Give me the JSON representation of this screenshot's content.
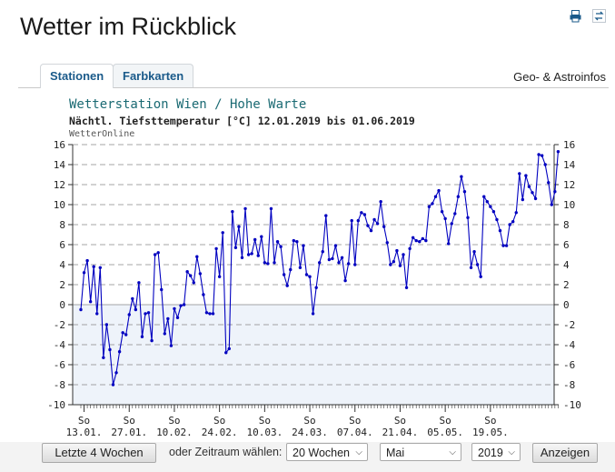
{
  "page": {
    "title": "Wetter im Rückblick"
  },
  "icons": {
    "print": "printer-icon",
    "share": "swap-arrows-icon"
  },
  "tabs": [
    {
      "label": "Stationen",
      "active": true
    },
    {
      "label": "Farbkarten",
      "active": false
    }
  ],
  "geo_link": "Geo- & Astroinfos",
  "chart_data": {
    "type": "line",
    "title": "Wetterstation Wien / Hohe Warte",
    "subtitle": "Nächtl. Tiefsttemperatur [°C] 12.01.2019 bis 01.06.2019",
    "source": "WetterOnline",
    "ylim": [
      -10,
      16
    ],
    "yticks": [
      -10,
      -8,
      -6,
      -4,
      -2,
      0,
      2,
      4,
      6,
      8,
      10,
      12,
      14,
      16
    ],
    "grid": true,
    "xtick_day": "So",
    "xtick_labels": [
      "13.01.",
      "27.01.",
      "10.02.",
      "24.02.",
      "10.03.",
      "24.03.",
      "07.04.",
      "21.04.",
      "05.05.",
      "19.05."
    ],
    "colors": {
      "line": "#0000c0",
      "below_zero_fill": "#eef3fa",
      "grid": "#888888"
    },
    "series": [
      {
        "values": [
          -0.5,
          3.2,
          4.4,
          0.3,
          3.8,
          -0.9,
          3.7,
          -5.3,
          -2.0,
          -4.5,
          -8.0,
          -6.8,
          -4.7,
          -2.8,
          -3.0,
          -1.0,
          0.6,
          -0.5,
          2.2,
          -3.2,
          -0.9,
          -0.8,
          -3.6,
          5.0,
          5.2,
          1.5,
          -2.9,
          -1.4,
          -4.1,
          -0.4,
          -1.3,
          -0.1,
          0.0,
          3.3,
          2.9,
          2.2,
          4.8,
          3.1,
          1.0,
          -0.8,
          -0.9,
          -0.9,
          5.6,
          2.8,
          7.2,
          -4.8,
          -4.4,
          9.3,
          5.7,
          7.8,
          4.7,
          9.6,
          5.0,
          5.1,
          6.5,
          4.9,
          6.8,
          4.2,
          4.1,
          9.6,
          4.2,
          6.3,
          5.8,
          3.0,
          1.9,
          3.5,
          6.4,
          6.3,
          3.7,
          5.9,
          3.0,
          2.8,
          -0.9,
          1.7,
          4.2,
          5.3,
          8.9,
          4.5,
          4.6,
          5.9,
          4.2,
          4.7,
          2.4,
          4.1,
          8.4,
          4.0,
          8.4,
          9.2,
          9.0,
          7.9,
          7.4,
          8.5,
          8.1,
          10.3,
          7.8,
          6.2,
          4.0,
          4.3,
          5.4,
          3.9,
          5.0,
          1.7,
          5.6,
          6.7,
          6.4,
          6.3,
          6.6,
          6.4,
          9.8,
          10.1,
          10.8,
          11.4,
          9.3,
          8.6,
          6.1,
          8.1,
          9.1,
          10.8,
          12.8,
          11.3,
          8.7,
          3.7,
          5.3,
          4.0,
          2.8,
          10.8,
          10.3,
          9.8,
          9.3,
          8.5,
          7.4,
          5.9,
          5.9,
          8.0,
          8.3,
          9.2,
          13.1,
          10.5,
          12.9,
          11.8,
          11.2,
          10.6,
          15.0,
          14.9,
          14.0,
          12.2,
          10.0,
          11.3,
          15.3
        ]
      }
    ]
  },
  "footer": {
    "last4_button": "Letzte 4 Wochen",
    "zeitraum_label": "oder Zeitraum wählen:",
    "weeks_select": "20 Wochen",
    "month_select": "Mai",
    "year_select": "2019",
    "show_button": "Anzeigen"
  }
}
